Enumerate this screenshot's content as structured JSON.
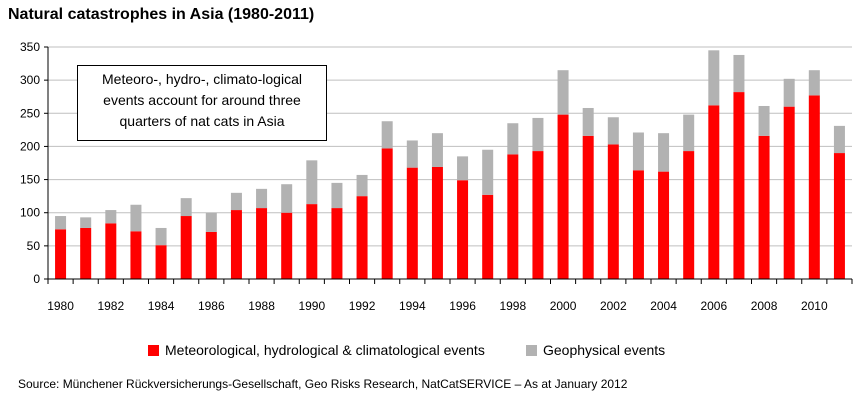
{
  "title": "Natural catastrophes in Asia (1980-2011)",
  "annotation": [
    "Meteoro-, hydro-, climato-logical",
    "events account for around three",
    "quarters of nat cats in Asia"
  ],
  "source": "Source: Münchener Rückversicherungs-Gesellschaft, Geo Risks Research, NatCatSERVICE – As at January 2012",
  "colors": {
    "meteo": "#ff0000",
    "geo": "#b2b2b2",
    "grid": "#bfbfbf"
  },
  "chart_data": {
    "type": "bar",
    "stacked": true,
    "title": "Natural catastrophes in Asia (1980-2011)",
    "xlabel": "",
    "ylabel": "",
    "ylim": [
      0,
      350
    ],
    "yticks": [
      0,
      50,
      100,
      150,
      200,
      250,
      300,
      350
    ],
    "grid": true,
    "legend_position": "bottom",
    "categories": [
      1980,
      1981,
      1982,
      1983,
      1984,
      1985,
      1986,
      1987,
      1988,
      1989,
      1990,
      1991,
      1992,
      1993,
      1994,
      1995,
      1996,
      1997,
      1998,
      1999,
      2000,
      2001,
      2002,
      2003,
      2004,
      2005,
      2006,
      2007,
      2008,
      2009,
      2010,
      2011
    ],
    "xtick_labels": [
      "1980",
      "1982",
      "1984",
      "1986",
      "1988",
      "1990",
      "1992",
      "1994",
      "1996",
      "1998",
      "2000",
      "2002",
      "2004",
      "2006",
      "2008",
      "2010"
    ],
    "series": [
      {
        "name": "Meteorological, hydrological & climatological events",
        "color": "#ff0000",
        "values": [
          75,
          77,
          84,
          72,
          51,
          95,
          71,
          104,
          107,
          100,
          113,
          107,
          125,
          197,
          168,
          169,
          149,
          127,
          188,
          193,
          248,
          216,
          203,
          164,
          162,
          193,
          262,
          282,
          216,
          260,
          277,
          190
        ]
      },
      {
        "name": "Geophysical events",
        "color": "#b2b2b2",
        "values": [
          20,
          16,
          20,
          40,
          26,
          27,
          29,
          26,
          29,
          43,
          66,
          38,
          32,
          41,
          41,
          51,
          36,
          68,
          47,
          50,
          67,
          42,
          41,
          57,
          58,
          55,
          83,
          56,
          45,
          42,
          38,
          41
        ]
      }
    ]
  }
}
